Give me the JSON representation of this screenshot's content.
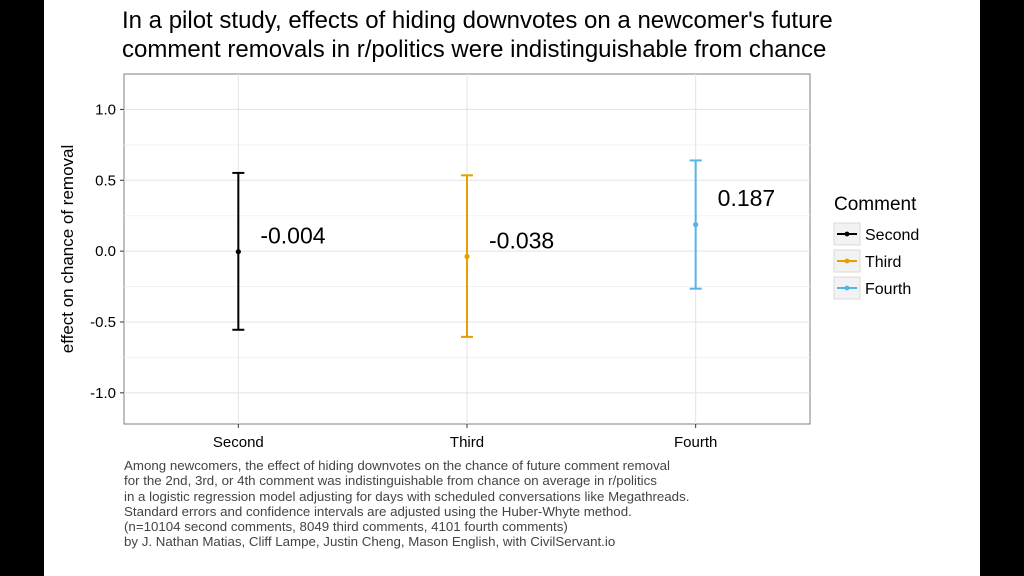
{
  "title_lines": [
    "In a pilot study, effects of hiding downvotes on a newcomer's future",
    "comment removals in r/politics were indistinguishable from chance"
  ],
  "caption_lines": [
    "Among newcomers, the effect of hiding downvotes on the chance of future comment removal",
    "for the 2nd, 3rd, or 4th comment was indistinguishable from chance on average in r/politics",
    "in a logistic regression model adjusting for days with scheduled conversations like Megathreads.",
    "Standard errors and confidence intervals are adjusted using the Huber-Whyte method.",
    "(n=10104 second comments, 8049 third comments, 4101 fourth comments)",
    "by J. Nathan Matias, Cliff Lampe, Justin Cheng, Mason English, with CivilServant.io"
  ],
  "chart_data": {
    "type": "errorbar",
    "ylabel": "effect on chance of removal",
    "xlabel": "",
    "ylim": [
      -1.22,
      1.25
    ],
    "yticks": [
      1.0,
      0.5,
      0.0,
      -0.5,
      -1.0
    ],
    "ytick_labels": [
      "1.0",
      "0.5",
      "0.0",
      "-0.5",
      "-1.0"
    ],
    "categories": [
      "Second",
      "Third",
      "Fourth"
    ],
    "grid": true,
    "legend": {
      "title": "Comment",
      "position": "right",
      "entries": [
        "Second",
        "Third",
        "Fourth"
      ]
    },
    "series": [
      {
        "name": "Second",
        "x": "Second",
        "estimate": -0.004,
        "lower": -0.555,
        "upper": 0.552,
        "label": "-0.004",
        "color": "#000000"
      },
      {
        "name": "Third",
        "x": "Third",
        "estimate": -0.038,
        "lower": -0.605,
        "upper": 0.535,
        "label": "-0.038",
        "color": "#E69F00"
      },
      {
        "name": "Fourth",
        "x": "Fourth",
        "estimate": 0.187,
        "lower": -0.265,
        "upper": 0.64,
        "label": "0.187",
        "color": "#56B4E9"
      }
    ]
  }
}
